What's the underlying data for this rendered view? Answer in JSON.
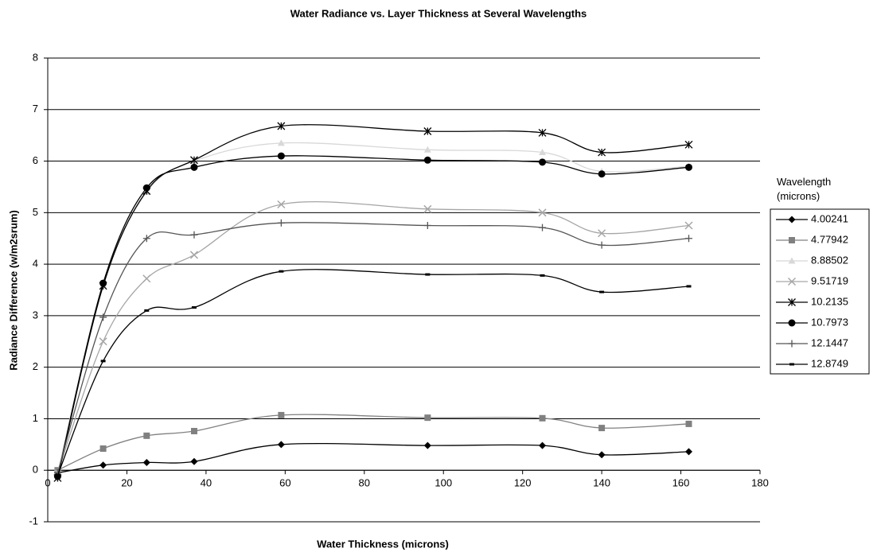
{
  "chart_data": {
    "type": "line",
    "title": "Water Radiance vs. Layer Thickness at Several Wavelengths",
    "x_label": "Water Thickness (microns)",
    "y_label": "Radiance Difference (w/m2srum)",
    "legend_title": "Wavelength (microns)",
    "legend_position": "right",
    "grid": true,
    "x": [
      2.5,
      14,
      25,
      37,
      59,
      96,
      125,
      140,
      162
    ],
    "xlim": [
      0,
      180
    ],
    "xticks": [
      0,
      20,
      40,
      60,
      80,
      100,
      120,
      140,
      160,
      180
    ],
    "ylim": [
      -1,
      8
    ],
    "yticks": [
      -1,
      0,
      1,
      2,
      3,
      4,
      5,
      6,
      7,
      8
    ],
    "series": [
      {
        "name": "4.00241",
        "color": "#000000",
        "marker": "diamond",
        "values": [
          -0.05,
          0.1,
          0.15,
          0.17,
          0.5,
          0.48,
          0.48,
          0.3,
          0.36
        ]
      },
      {
        "name": "4.77942",
        "color": "#808080",
        "marker": "square",
        "values": [
          0,
          0.42,
          0.67,
          0.76,
          1.07,
          1.02,
          1.01,
          0.82,
          0.9
        ]
      },
      {
        "name": "8.88502",
        "color": "#d8d8d8",
        "marker": "triangle",
        "values": [
          -0.05,
          3.6,
          5.4,
          6.0,
          6.35,
          6.22,
          6.17,
          5.8,
          5.9
        ]
      },
      {
        "name": "9.51719",
        "color": "#a6a6a6",
        "marker": "x",
        "values": [
          -0.05,
          2.5,
          3.72,
          4.18,
          5.16,
          5.07,
          5.0,
          4.6,
          4.75
        ]
      },
      {
        "name": "10.2135",
        "color": "#000000",
        "marker": "star",
        "values": [
          -0.15,
          3.58,
          5.42,
          6.02,
          6.68,
          6.58,
          6.55,
          6.17,
          6.32
        ]
      },
      {
        "name": "10.7973",
        "color": "#000000",
        "marker": "circle",
        "values": [
          -0.12,
          3.63,
          5.48,
          5.88,
          6.1,
          6.02,
          5.98,
          5.75,
          5.88
        ]
      },
      {
        "name": "12.1447",
        "color": "#555555",
        "marker": "plus",
        "values": [
          -0.05,
          2.97,
          4.5,
          4.57,
          4.8,
          4.75,
          4.71,
          4.37,
          4.5
        ]
      },
      {
        "name": "12.8749",
        "color": "#000000",
        "marker": "dash",
        "values": [
          -0.1,
          2.12,
          3.1,
          3.16,
          3.86,
          3.8,
          3.78,
          3.46,
          3.57
        ]
      }
    ]
  }
}
